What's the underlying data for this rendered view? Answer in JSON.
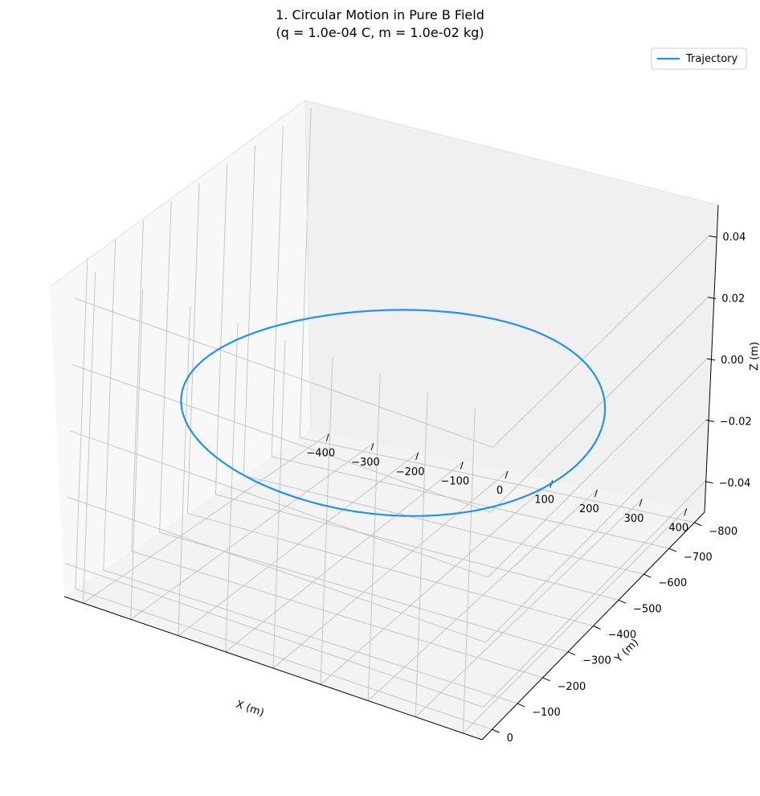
{
  "chart_data": {
    "type": "line",
    "title": "1. Circular Motion in Pure B Field",
    "subtitle": "(q = 1.0e-04 C, m = 1.0e-02 kg)",
    "xlabel": "X (m)",
    "ylabel": "Y (m)",
    "zlabel": "Z (m)",
    "x_ticks": [
      "−400",
      "−300",
      "−200",
      "−100",
      "0",
      "100",
      "200",
      "300",
      "400"
    ],
    "y_ticks": [
      "0",
      "−100",
      "−200",
      "−300",
      "−400",
      "−500",
      "−600",
      "−700",
      "−800"
    ],
    "z_ticks": [
      "0.04",
      "0.02",
      "0.00",
      "−0.02",
      "−0.04"
    ],
    "xlim": [
      -440,
      440
    ],
    "ylim": [
      -840,
      40
    ],
    "zlim": [
      -0.05,
      0.05
    ],
    "grid": true,
    "legend": {
      "position": "top-right"
    },
    "series": [
      {
        "name": "Trajectory",
        "color": "#1e90ff",
        "shape": "circle",
        "center": [
          0,
          -400,
          0
        ],
        "radius": 400,
        "z": 0
      }
    ]
  }
}
